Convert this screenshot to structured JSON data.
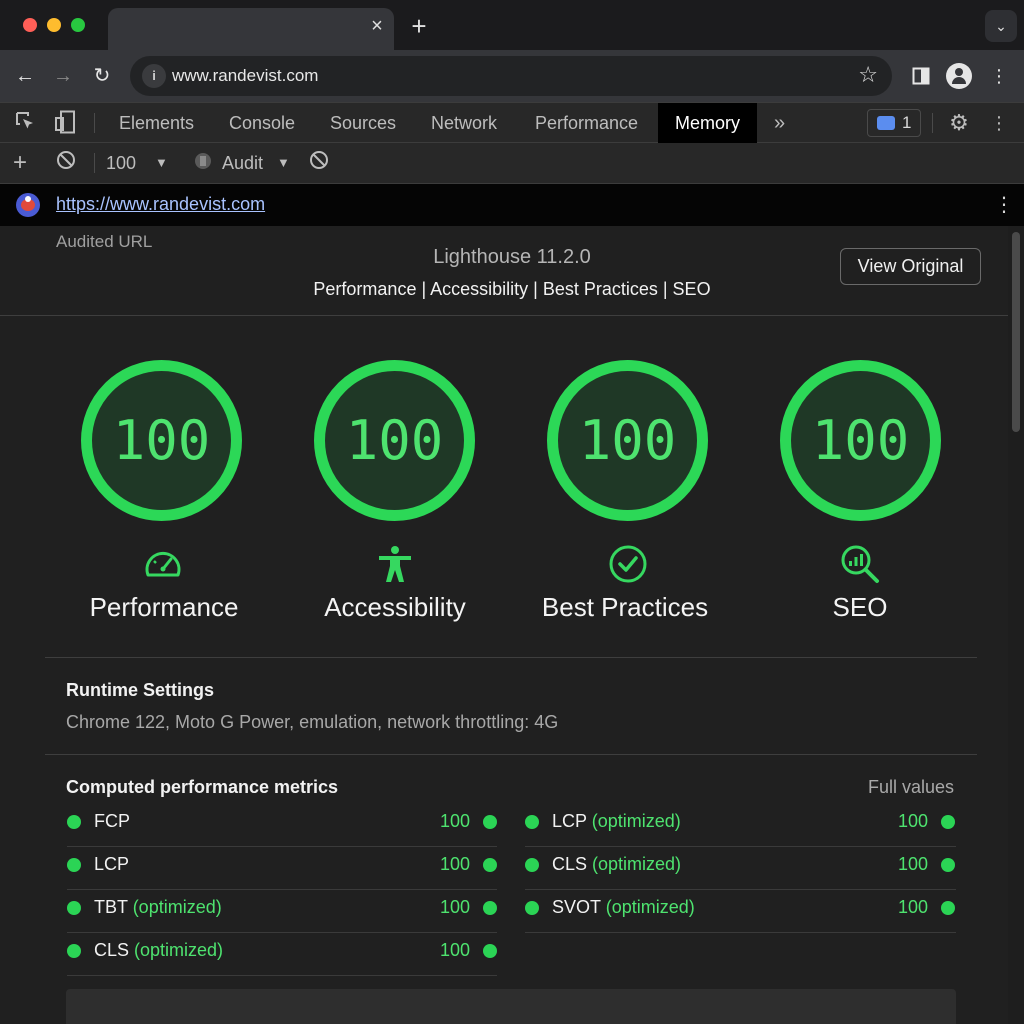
{
  "browser": {
    "url": "www.randevist.com",
    "tab_close": "×",
    "new_tab": "+",
    "tab_search": "⌄"
  },
  "devtools": {
    "tabs": [
      {
        "label": "Elements"
      },
      {
        "label": "Console"
      },
      {
        "label": "Sources"
      },
      {
        "label": "Network"
      },
      {
        "label": "Performance"
      },
      {
        "label": "Memory"
      }
    ],
    "more_tabs": "»",
    "issues_count": "1",
    "active_tab": "Memory"
  },
  "lighthouse_toolbar": {
    "zoom": "100",
    "mode": "Audit"
  },
  "report": {
    "url": "https://www.randevist.com",
    "audited_label": "Audited URL",
    "version": "Lighthouse 11.2.0",
    "categories_line": "Performance | Accessibility | Best Practices | SEO",
    "view_original": "View Original",
    "categories": [
      {
        "title": "Performance",
        "score": "100",
        "icon": "speedometer-icon"
      },
      {
        "title": "Accessibility",
        "score": "100",
        "icon": "accessibility-person-icon"
      },
      {
        "title": "Best Practices",
        "score": "100",
        "icon": "checkmark-circle-icon"
      },
      {
        "title": "SEO",
        "score": "100",
        "icon": "seo-magnifier-icon"
      }
    ],
    "score_color": "#4ee36f",
    "runtime": {
      "title": "Runtime Settings",
      "text": "Chrome 122, Moto G Power, emulation, network throttling: 4G"
    },
    "metrics": {
      "title": "Computed performance metrics",
      "full_values": "Full values",
      "left": [
        {
          "name": "FCP",
          "qualifier": "",
          "value": "100"
        },
        {
          "name": "LCP",
          "qualifier": "",
          "value": "100"
        },
        {
          "name": "TBT",
          "qualifier": "(optimized)",
          "value": "100"
        },
        {
          "name": "CLS",
          "qualifier": "(optimized)",
          "value": "100"
        }
      ],
      "right": [
        {
          "name": "LCP",
          "qualifier": "(optimized)",
          "value": "100"
        },
        {
          "name": "CLS",
          "qualifier": "(optimized)",
          "value": "100"
        },
        {
          "name": "SVOT",
          "qualifier": "(optimized)",
          "value": "100"
        }
      ]
    }
  }
}
